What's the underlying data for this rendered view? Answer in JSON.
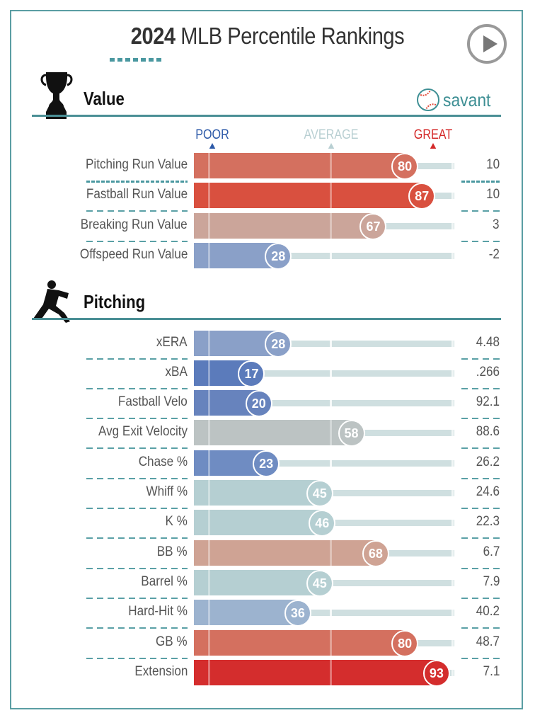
{
  "header": {
    "year": "2024",
    "title": "MLB Percentile Rankings"
  },
  "colors": {
    "accent": "#4a8f95",
    "poor": "#2d5aa8",
    "average": "#b8cfd2",
    "great": "#d42a2a"
  },
  "brand": {
    "name": "savant",
    "icon": "baseball-icon"
  },
  "legend": {
    "poor": "POOR",
    "average": "AVERAGE",
    "great": "GREAT"
  },
  "sections": [
    {
      "title": "Value",
      "icon": "trophy-icon",
      "rows": [
        {
          "label": "Pitching Run Value",
          "percentile": 80,
          "value": "10",
          "color": "#d4705f"
        },
        {
          "label": "Fastball Run Value",
          "percentile": 87,
          "value": "10",
          "color": "#d9503f"
        },
        {
          "label": "Breaking Run Value",
          "percentile": 67,
          "value": "3",
          "color": "#cba59a"
        },
        {
          "label": "Offspeed Run Value",
          "percentile": 28,
          "value": "-2",
          "color": "#8aa0c8"
        }
      ]
    },
    {
      "title": "Pitching",
      "icon": "pitcher-icon",
      "rows": [
        {
          "label": "xERA",
          "percentile": 28,
          "value": "4.48",
          "color": "#8aa0c8"
        },
        {
          "label": "xBA",
          "percentile": 17,
          "value": ".266",
          "color": "#5b7bbb"
        },
        {
          "label": "Fastball Velo",
          "percentile": 20,
          "value": "92.1",
          "color": "#6783bd"
        },
        {
          "label": "Avg Exit Velocity",
          "percentile": 58,
          "value": "88.6",
          "color": "#bcc3c3"
        },
        {
          "label": "Chase %",
          "percentile": 23,
          "value": "26.2",
          "color": "#6f8cc2"
        },
        {
          "label": "Whiff %",
          "percentile": 45,
          "value": "24.6",
          "color": "#b5cfd2"
        },
        {
          "label": "K %",
          "percentile": 46,
          "value": "22.3",
          "color": "#b5cfd2"
        },
        {
          "label": "BB %",
          "percentile": 68,
          "value": "6.7",
          "color": "#cfa394"
        },
        {
          "label": "Barrel %",
          "percentile": 45,
          "value": "7.9",
          "color": "#b5cfd2"
        },
        {
          "label": "Hard-Hit %",
          "percentile": 36,
          "value": "40.2",
          "color": "#9cb3cf"
        },
        {
          "label": "GB %",
          "percentile": 80,
          "value": "48.7",
          "color": "#d4705f"
        },
        {
          "label": "Extension",
          "percentile": 93,
          "value": "7.1",
          "color": "#d42d2d"
        }
      ]
    }
  ]
}
